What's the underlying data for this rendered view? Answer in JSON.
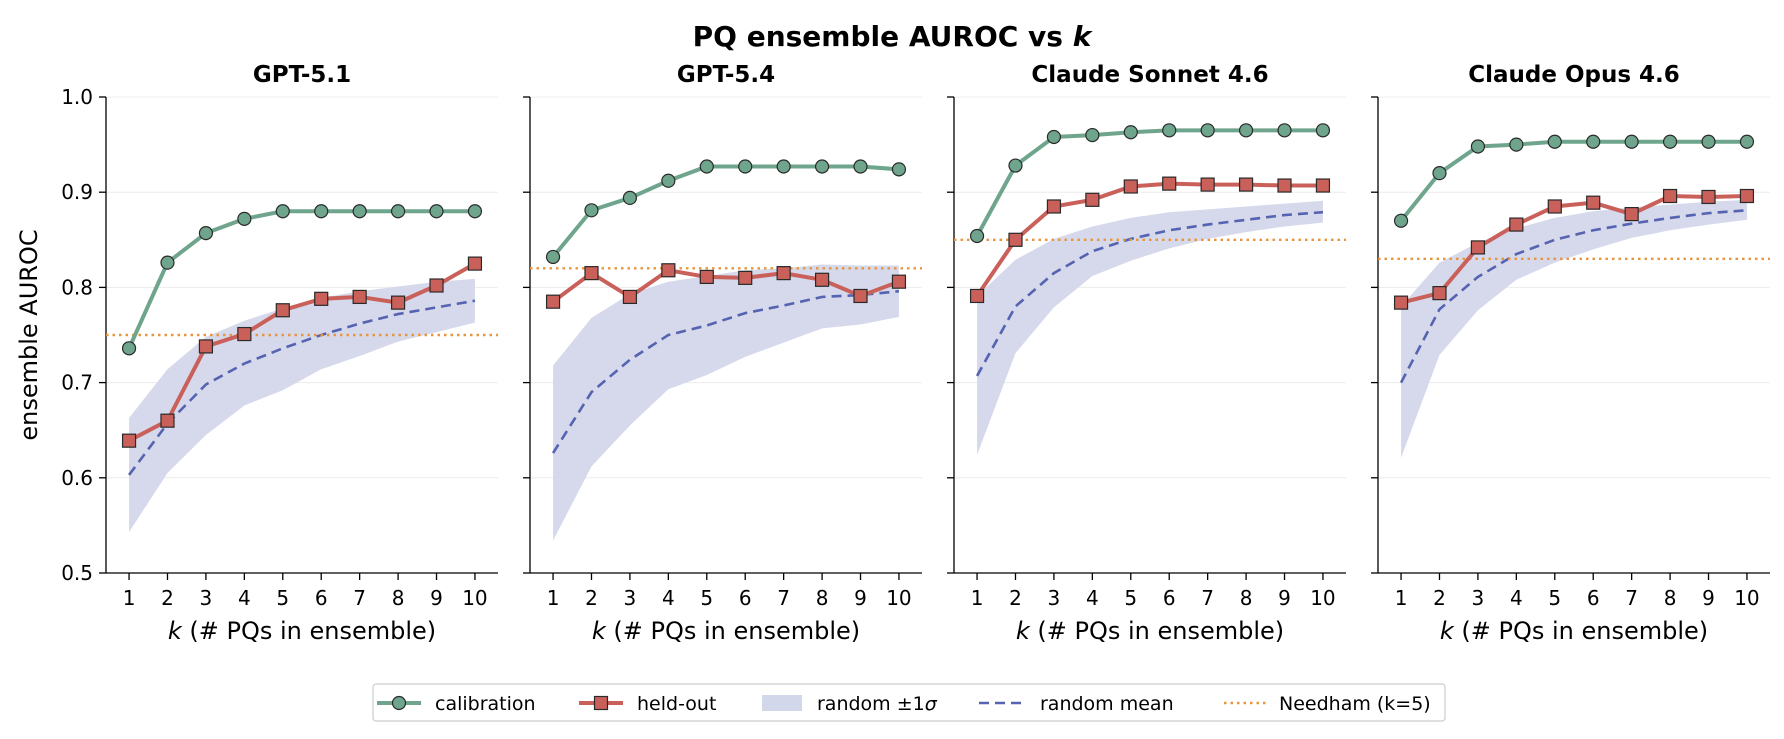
{
  "figure": {
    "title_main": "PQ ensemble AUROC vs ",
    "title_var": "k",
    "ylabel": "ensemble AUROC",
    "xlabel_var": "k",
    "xlabel_rest": " (# PQs in ensemble)"
  },
  "colors": {
    "calibration": "#6fa58d",
    "heldout": "#c9605a",
    "band": "#d3d7ea",
    "random_mean": "#5563b0",
    "needham": "#e8963e",
    "grid": "#ececec"
  },
  "legend": {
    "placement": "bottom-center",
    "items": [
      {
        "key": "calibration",
        "label": "calibration"
      },
      {
        "key": "heldout",
        "label": "held-out"
      },
      {
        "key": "band",
        "label": "random ±1",
        "label_sym": "σ"
      },
      {
        "key": "random_mean",
        "label": "random mean"
      },
      {
        "key": "needham",
        "label": "Needham (k=5)"
      }
    ]
  },
  "chart_data": [
    {
      "type": "line",
      "title": "GPT-5.1",
      "x": [
        1,
        2,
        3,
        4,
        5,
        6,
        7,
        8,
        9,
        10
      ],
      "ylim": [
        0.5,
        1.0
      ],
      "yticks": [
        0.5,
        0.6,
        0.7,
        0.8,
        0.9,
        1.0
      ],
      "grid": true,
      "series": [
        {
          "name": "calibration",
          "values": [
            0.736,
            0.826,
            0.857,
            0.872,
            0.88,
            0.88,
            0.88,
            0.88,
            0.88,
            0.88
          ]
        },
        {
          "name": "held-out",
          "values": [
            0.639,
            0.66,
            0.738,
            0.751,
            0.776,
            0.788,
            0.79,
            0.784,
            0.802,
            0.825
          ]
        },
        {
          "name": "random mean",
          "values": [
            0.603,
            0.657,
            0.698,
            0.72,
            0.736,
            0.75,
            0.762,
            0.772,
            0.779,
            0.786
          ]
        },
        {
          "name": "random ±1σ",
          "lower": [
            0.543,
            0.605,
            0.645,
            0.676,
            0.692,
            0.714,
            0.728,
            0.743,
            0.753,
            0.763
          ],
          "upper": [
            0.663,
            0.714,
            0.748,
            0.765,
            0.778,
            0.789,
            0.796,
            0.801,
            0.806,
            0.809
          ]
        }
      ],
      "needham": 0.75
    },
    {
      "type": "line",
      "title": "GPT-5.4",
      "x": [
        1,
        2,
        3,
        4,
        5,
        6,
        7,
        8,
        9,
        10
      ],
      "ylim": [
        0.5,
        1.0
      ],
      "yticks": [
        0.5,
        0.6,
        0.7,
        0.8,
        0.9,
        1.0
      ],
      "grid": true,
      "series": [
        {
          "name": "calibration",
          "values": [
            0.832,
            0.881,
            0.894,
            0.912,
            0.927,
            0.927,
            0.927,
            0.927,
            0.927,
            0.924
          ]
        },
        {
          "name": "held-out",
          "values": [
            0.785,
            0.815,
            0.79,
            0.818,
            0.811,
            0.81,
            0.815,
            0.808,
            0.791,
            0.806
          ]
        },
        {
          "name": "random mean",
          "values": [
            0.626,
            0.69,
            0.724,
            0.75,
            0.76,
            0.773,
            0.781,
            0.79,
            0.792,
            0.796
          ]
        },
        {
          "name": "random ±1σ",
          "lower": [
            0.534,
            0.612,
            0.655,
            0.693,
            0.708,
            0.727,
            0.742,
            0.757,
            0.761,
            0.769
          ],
          "upper": [
            0.718,
            0.768,
            0.793,
            0.806,
            0.812,
            0.818,
            0.82,
            0.824,
            0.823,
            0.823
          ]
        }
      ],
      "needham": 0.82
    },
    {
      "type": "line",
      "title": "Claude Sonnet 4.6",
      "x": [
        1,
        2,
        3,
        4,
        5,
        6,
        7,
        8,
        9,
        10
      ],
      "ylim": [
        0.5,
        1.0
      ],
      "yticks": [
        0.5,
        0.6,
        0.7,
        0.8,
        0.9,
        1.0
      ],
      "grid": true,
      "series": [
        {
          "name": "calibration",
          "values": [
            0.854,
            0.928,
            0.958,
            0.96,
            0.963,
            0.965,
            0.965,
            0.965,
            0.965,
            0.965
          ]
        },
        {
          "name": "held-out",
          "values": [
            0.791,
            0.85,
            0.885,
            0.892,
            0.906,
            0.909,
            0.908,
            0.908,
            0.907,
            0.907
          ]
        },
        {
          "name": "random mean",
          "values": [
            0.707,
            0.78,
            0.815,
            0.838,
            0.851,
            0.86,
            0.866,
            0.871,
            0.876,
            0.879
          ]
        },
        {
          "name": "random ±1σ",
          "lower": [
            0.624,
            0.731,
            0.779,
            0.812,
            0.828,
            0.841,
            0.851,
            0.858,
            0.864,
            0.868
          ],
          "upper": [
            0.791,
            0.829,
            0.851,
            0.864,
            0.873,
            0.879,
            0.882,
            0.885,
            0.888,
            0.891
          ]
        }
      ],
      "needham": 0.85
    },
    {
      "type": "line",
      "title": "Claude Opus 4.6",
      "x": [
        1,
        2,
        3,
        4,
        5,
        6,
        7,
        8,
        9,
        10
      ],
      "ylim": [
        0.5,
        1.0
      ],
      "yticks": [
        0.5,
        0.6,
        0.7,
        0.8,
        0.9,
        1.0
      ],
      "grid": true,
      "series": [
        {
          "name": "calibration",
          "values": [
            0.87,
            0.92,
            0.948,
            0.95,
            0.953,
            0.953,
            0.953,
            0.953,
            0.953,
            0.953
          ]
        },
        {
          "name": "held-out",
          "values": [
            0.784,
            0.794,
            0.842,
            0.866,
            0.885,
            0.889,
            0.877,
            0.896,
            0.895,
            0.896
          ]
        },
        {
          "name": "random mean",
          "values": [
            0.7,
            0.777,
            0.811,
            0.835,
            0.85,
            0.86,
            0.867,
            0.873,
            0.878,
            0.881
          ]
        },
        {
          "name": "random ±1σ",
          "lower": [
            0.621,
            0.729,
            0.776,
            0.808,
            0.826,
            0.84,
            0.852,
            0.86,
            0.866,
            0.871
          ],
          "upper": [
            0.78,
            0.826,
            0.847,
            0.862,
            0.873,
            0.88,
            0.884,
            0.887,
            0.89,
            0.892
          ]
        }
      ],
      "needham": 0.83
    }
  ]
}
